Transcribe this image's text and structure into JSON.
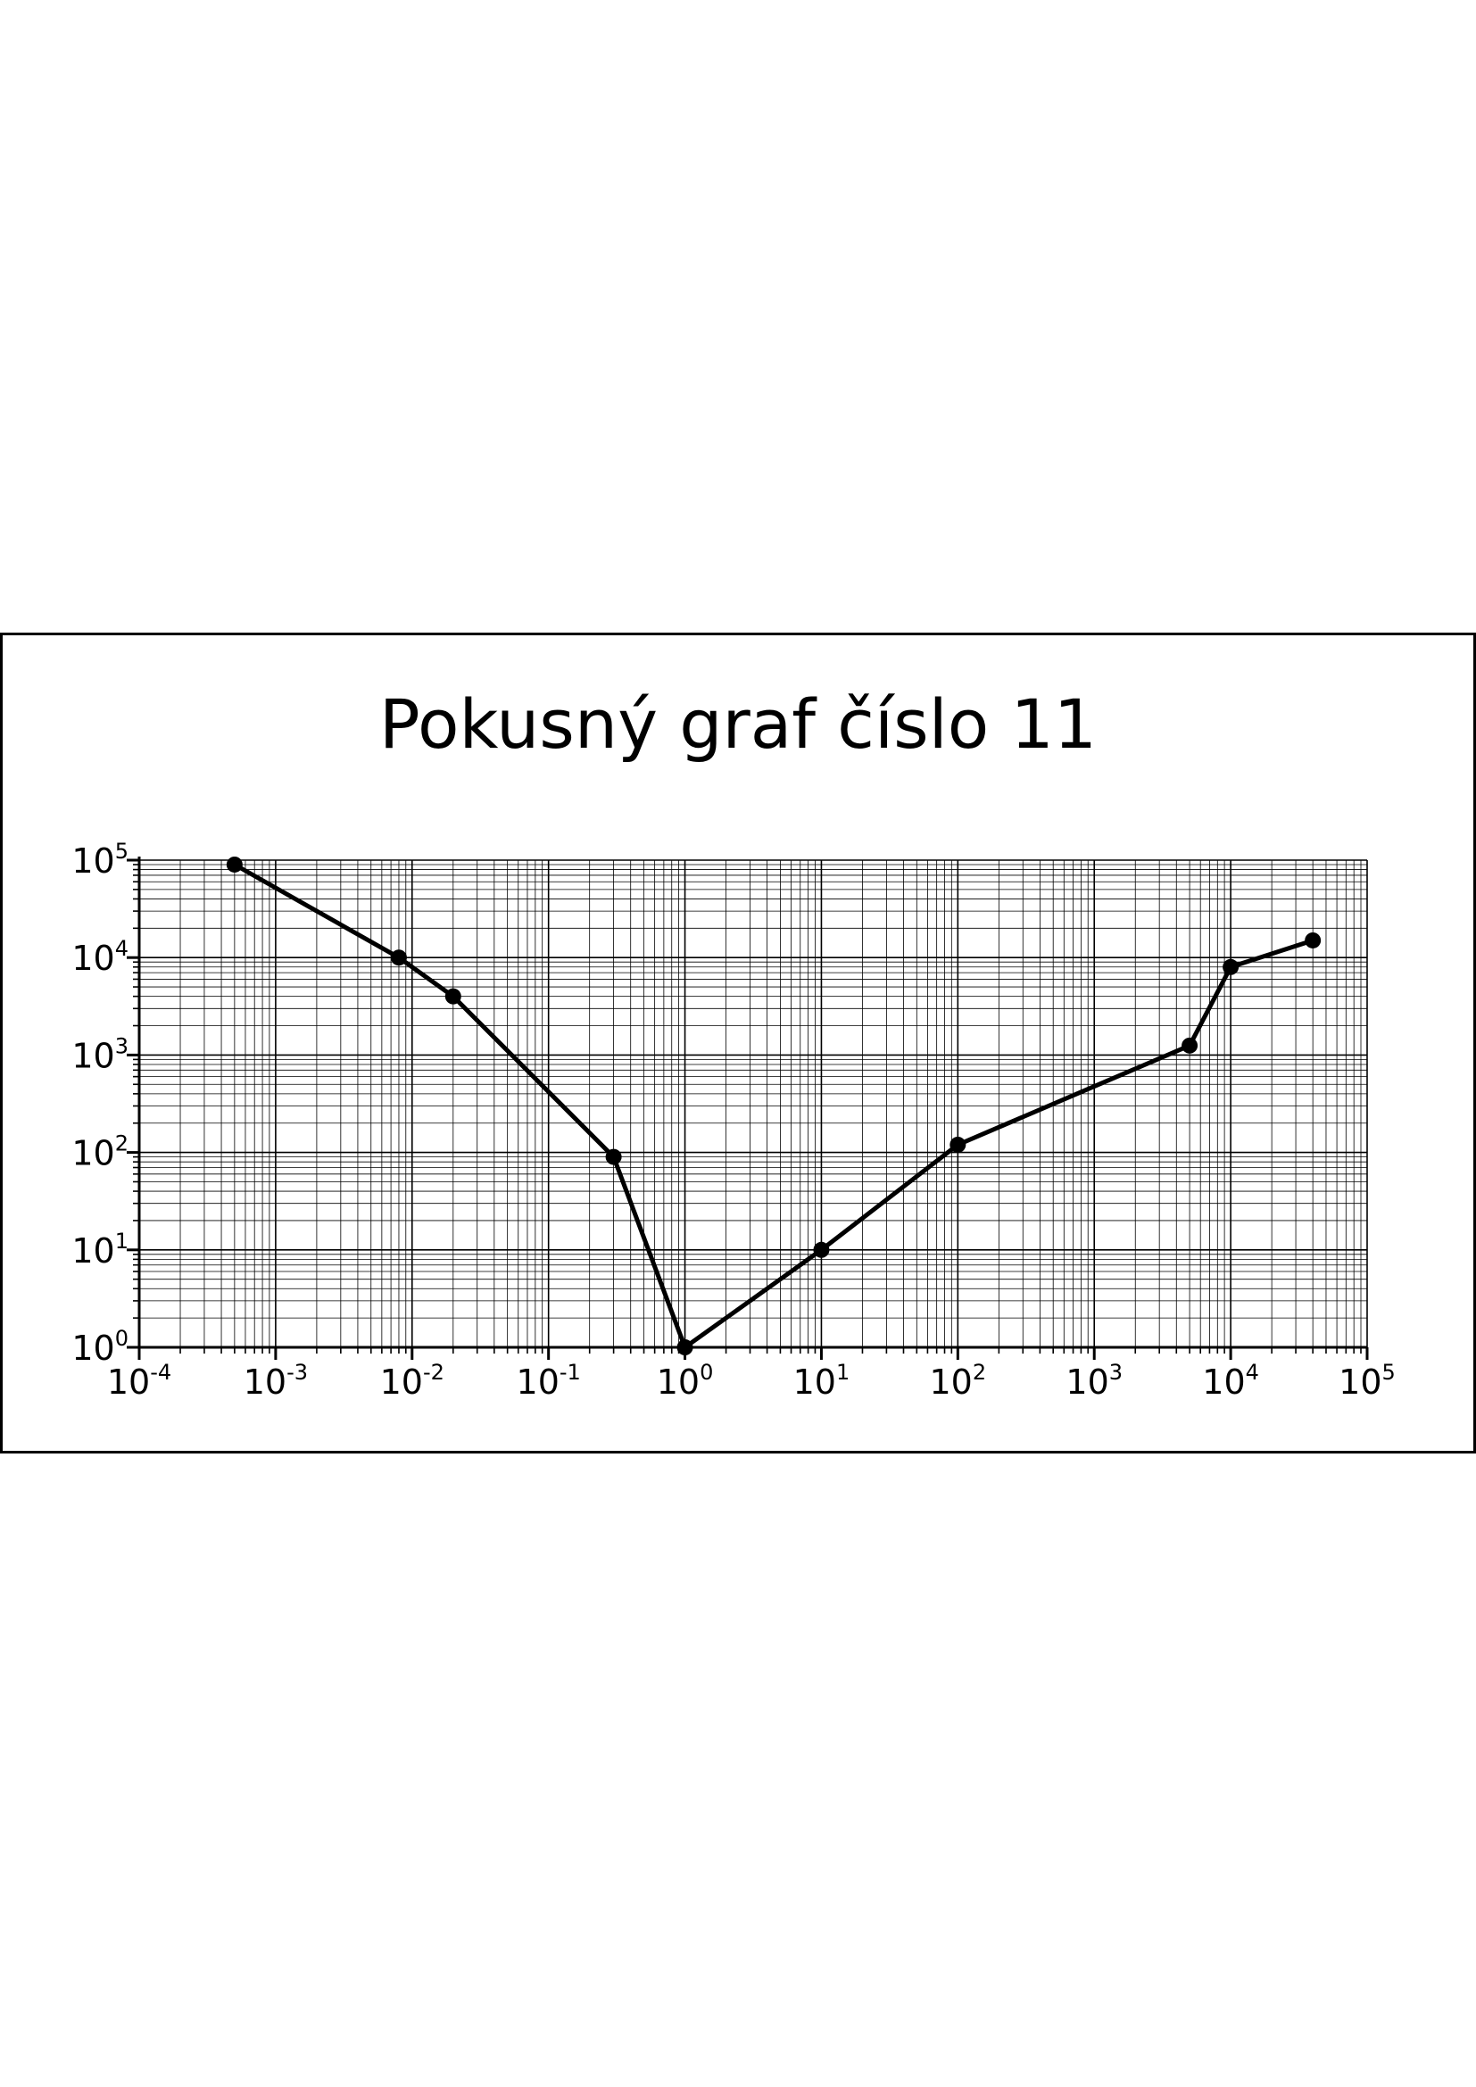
{
  "chart_data": {
    "type": "line",
    "title": "Pokusný graf číslo 11",
    "xlabel": "",
    "ylabel": "",
    "x_scale": "log",
    "y_scale": "log",
    "xlim": [
      0.0001,
      100000
    ],
    "ylim": [
      1,
      100000
    ],
    "grid": true,
    "x_ticks": [
      {
        "base": "10",
        "exp": "-4"
      },
      {
        "base": "10",
        "exp": "-3"
      },
      {
        "base": "10",
        "exp": "-2"
      },
      {
        "base": "10",
        "exp": "-1"
      },
      {
        "base": "10",
        "exp": "0"
      },
      {
        "base": "10",
        "exp": "1"
      },
      {
        "base": "10",
        "exp": "2"
      },
      {
        "base": "10",
        "exp": "3"
      },
      {
        "base": "10",
        "exp": "4"
      },
      {
        "base": "10",
        "exp": "5"
      }
    ],
    "y_ticks": [
      {
        "base": "10",
        "exp": "0"
      },
      {
        "base": "10",
        "exp": "1"
      },
      {
        "base": "10",
        "exp": "2"
      },
      {
        "base": "10",
        "exp": "3"
      },
      {
        "base": "10",
        "exp": "4"
      },
      {
        "base": "10",
        "exp": "5"
      }
    ],
    "series": [
      {
        "color": "#000000",
        "marker": "circle",
        "points": [
          {
            "x": 0.0005,
            "y": 90000
          },
          {
            "x": 0.008,
            "y": 10000
          },
          {
            "x": 0.02,
            "y": 4000
          },
          {
            "x": 0.3,
            "y": 90
          },
          {
            "x": 1,
            "y": 1
          },
          {
            "x": 10,
            "y": 10
          },
          {
            "x": 100,
            "y": 120
          },
          {
            "x": 5000,
            "y": 1250
          },
          {
            "x": 10000,
            "y": 8000
          },
          {
            "x": 40000,
            "y": 15000
          }
        ]
      }
    ]
  }
}
